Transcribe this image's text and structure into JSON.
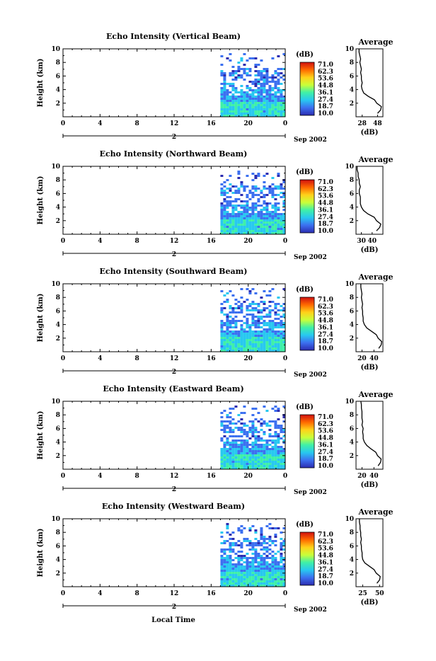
{
  "chart_data": {
    "type": "heatmap",
    "xlabel": "Local Time",
    "date_label": "Sep 2002",
    "x_ticks": [
      "0",
      "4",
      "8",
      "12",
      "16",
      "20",
      "0"
    ],
    "day_label": "2",
    "y_ticks": [
      "2",
      "4",
      "6",
      "8",
      "10"
    ],
    "ylabel": "Height (km)",
    "xlim": [
      0,
      24
    ],
    "ylim": [
      0,
      10
    ],
    "colorbar": {
      "title": "(dB)",
      "labels": [
        "71.0",
        "62.3",
        "53.6",
        "44.8",
        "36.1",
        "27.4",
        "18.7",
        "10.0"
      ],
      "colors": [
        "#d01010",
        "#ff6a00",
        "#ffd21a",
        "#c8ff3a",
        "#3ff0a8",
        "#28c8f0",
        "#3c70f0",
        "#2c2cb0"
      ]
    },
    "panels": [
      {
        "title": "Echo Intensity (Vertical Beam)",
        "avg_title": "Average",
        "avg_xlabel": "(dB)",
        "avg_ticks": [
          "28",
          "48"
        ],
        "avg_xlim": [
          20,
          55
        ],
        "avg_profile": [
          [
            0.5,
            48
          ],
          [
            1,
            52
          ],
          [
            1.5,
            53
          ],
          [
            2,
            47
          ],
          [
            2.5,
            44
          ],
          [
            3,
            36
          ],
          [
            3.5,
            30
          ],
          [
            4,
            28
          ],
          [
            4.5,
            27
          ],
          [
            5,
            28
          ],
          [
            5.5,
            27
          ],
          [
            6,
            27
          ],
          [
            6.5,
            26
          ],
          [
            7,
            27
          ],
          [
            7.5,
            26
          ],
          [
            8,
            25
          ],
          [
            8.5,
            26
          ],
          [
            9,
            25
          ],
          [
            9.5,
            24
          ],
          [
            10,
            24
          ]
        ]
      },
      {
        "title": "Echo Intensity (Northward Beam)",
        "avg_title": "Average",
        "avg_xlabel": "(dB)",
        "avg_ticks": [
          "30",
          "40"
        ],
        "avg_xlim": [
          25,
          50
        ],
        "avg_profile": [
          [
            0.5,
            44
          ],
          [
            1,
            47
          ],
          [
            1.5,
            48
          ],
          [
            2,
            44
          ],
          [
            2.5,
            42
          ],
          [
            3,
            36
          ],
          [
            3.5,
            32
          ],
          [
            4,
            30
          ],
          [
            4.5,
            29
          ],
          [
            5,
            29
          ],
          [
            5.5,
            29
          ],
          [
            6,
            28
          ],
          [
            6.5,
            28
          ],
          [
            7,
            29
          ],
          [
            7.5,
            28
          ],
          [
            8,
            28
          ],
          [
            8.5,
            27
          ],
          [
            9,
            27
          ],
          [
            9.5,
            26
          ],
          [
            10,
            26
          ]
        ]
      },
      {
        "title": "Echo Intensity (Southward Beam)",
        "avg_title": "Average",
        "avg_xlabel": "(dB)",
        "avg_ticks": [
          "20",
          "40"
        ],
        "avg_xlim": [
          10,
          55
        ],
        "avg_profile": [
          [
            0.5,
            48
          ],
          [
            1,
            52
          ],
          [
            1.5,
            53
          ],
          [
            2,
            47
          ],
          [
            2.5,
            44
          ],
          [
            3,
            36
          ],
          [
            3.5,
            28
          ],
          [
            4,
            24
          ],
          [
            4.5,
            22
          ],
          [
            5,
            22
          ],
          [
            5.5,
            21
          ],
          [
            6,
            21
          ],
          [
            6.5,
            20
          ],
          [
            7,
            21
          ],
          [
            7.5,
            20
          ],
          [
            8,
            19
          ],
          [
            8.5,
            20
          ],
          [
            9,
            19
          ],
          [
            9.5,
            18
          ],
          [
            10,
            18
          ]
        ]
      },
      {
        "title": "Echo Intensity (Eastward Beam)",
        "avg_title": "Average",
        "avg_xlabel": "(dB)",
        "avg_ticks": [
          "20",
          "40"
        ],
        "avg_xlim": [
          10,
          55
        ],
        "avg_profile": [
          [
            0.5,
            47
          ],
          [
            1,
            51
          ],
          [
            1.5,
            52
          ],
          [
            2,
            46
          ],
          [
            2.5,
            43
          ],
          [
            3,
            35
          ],
          [
            3.5,
            28
          ],
          [
            4,
            24
          ],
          [
            4.5,
            22
          ],
          [
            5,
            22
          ],
          [
            5.5,
            21
          ],
          [
            6,
            22
          ],
          [
            6.5,
            20
          ],
          [
            7,
            21
          ],
          [
            7.5,
            20
          ],
          [
            8,
            20
          ],
          [
            8.5,
            20
          ],
          [
            9,
            19
          ],
          [
            9.5,
            19
          ],
          [
            10,
            18
          ]
        ]
      },
      {
        "title": "Echo Intensity (Westward Beam)",
        "avg_title": "Average",
        "avg_xlabel": "(dB)",
        "avg_ticks": [
          "25",
          "50"
        ],
        "avg_xlim": [
          15,
          55
        ],
        "avg_profile": [
          [
            0.5,
            46
          ],
          [
            1,
            50
          ],
          [
            1.5,
            51
          ],
          [
            2,
            45
          ],
          [
            2.5,
            42
          ],
          [
            3,
            35
          ],
          [
            3.5,
            28
          ],
          [
            4,
            25
          ],
          [
            4.5,
            24
          ],
          [
            5,
            24
          ],
          [
            5.5,
            23
          ],
          [
            6,
            23
          ],
          [
            6.5,
            22
          ],
          [
            7,
            23
          ],
          [
            7.5,
            22
          ],
          [
            8,
            22
          ],
          [
            8.5,
            21
          ],
          [
            9,
            21
          ],
          [
            9.5,
            20
          ],
          [
            10,
            20
          ]
        ]
      }
    ]
  }
}
